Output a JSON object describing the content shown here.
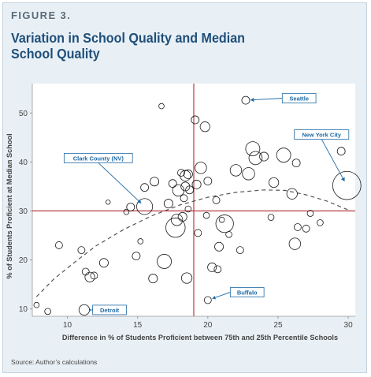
{
  "figure_label": "FIGURE 3.",
  "title": "Variation in School Quality and Median School Quality",
  "source": "Source: Author’s calculations",
  "colors": {
    "background": "#e9f0f5",
    "title": "#1f4f7a",
    "reference_lines": "#b3282d",
    "bubble_stroke": "#1a1a1a",
    "trend": "#555555",
    "annotation": "#1f6aa5"
  },
  "chart_data": {
    "type": "scatter",
    "subtype": "bubble",
    "xlabel": "Difference in % of Students Proficient between 75th and 25th Percentile Schools",
    "ylabel": "% of Students Proficient at Median School",
    "xlim": [
      7.5,
      30.5
    ],
    "ylim": [
      8.5,
      56
    ],
    "xticks": [
      10,
      15,
      20,
      25,
      30
    ],
    "yticks": [
      10,
      20,
      30,
      40,
      50
    ],
    "grid": false,
    "reference_lines": {
      "x": 19,
      "y": 30
    },
    "trend": {
      "style": "dashed",
      "x": [
        7.8,
        9,
        10.5,
        12,
        14,
        16,
        18,
        20,
        22,
        24,
        25.5,
        27,
        28.5,
        30
      ],
      "y": [
        12.5,
        16,
        19.5,
        22.8,
        26.2,
        29,
        31.2,
        32.8,
        33.8,
        34.3,
        34.2,
        33.3,
        32,
        30.2
      ]
    },
    "points": [
      {
        "x": 7.8,
        "y": 10.8,
        "size": 0.6
      },
      {
        "x": 8.6,
        "y": 9.5,
        "size": 0.7
      },
      {
        "x": 9.4,
        "y": 23.0,
        "size": 0.8
      },
      {
        "x": 11.0,
        "y": 22.0,
        "size": 0.8
      },
      {
        "x": 11.3,
        "y": 17.6,
        "size": 0.8
      },
      {
        "x": 11.6,
        "y": 16.5,
        "size": 1.1
      },
      {
        "x": 11.9,
        "y": 16.8,
        "size": 0.8
      },
      {
        "x": 11.2,
        "y": 9.8,
        "size": 1.2
      },
      {
        "x": 12.6,
        "y": 19.4,
        "size": 1.0
      },
      {
        "x": 12.9,
        "y": 31.8,
        "size": 0.5
      },
      {
        "x": 14.2,
        "y": 29.8,
        "size": 0.6
      },
      {
        "x": 14.5,
        "y": 30.8,
        "size": 0.9
      },
      {
        "x": 14.9,
        "y": 20.8,
        "size": 0.9
      },
      {
        "x": 15.2,
        "y": 23.8,
        "size": 0.6
      },
      {
        "x": 15.5,
        "y": 30.9,
        "size": 1.8
      },
      {
        "x": 15.5,
        "y": 34.8,
        "size": 0.9
      },
      {
        "x": 16.2,
        "y": 36.0,
        "size": 1.0
      },
      {
        "x": 16.1,
        "y": 16.2,
        "size": 1.0
      },
      {
        "x": 16.7,
        "y": 51.4,
        "size": 0.6
      },
      {
        "x": 16.9,
        "y": 19.7,
        "size": 1.6
      },
      {
        "x": 17.2,
        "y": 31.5,
        "size": 1.0
      },
      {
        "x": 17.5,
        "y": 35.6,
        "size": 0.9
      },
      {
        "x": 17.7,
        "y": 26.6,
        "size": 2.2
      },
      {
        "x": 17.8,
        "y": 28.2,
        "size": 1.3
      },
      {
        "x": 17.9,
        "y": 34.2,
        "size": 1.3
      },
      {
        "x": 18.1,
        "y": 37.8,
        "size": 0.8
      },
      {
        "x": 18.2,
        "y": 28.8,
        "size": 1.0
      },
      {
        "x": 18.3,
        "y": 32.6,
        "size": 0.8
      },
      {
        "x": 18.4,
        "y": 35.0,
        "size": 1.0
      },
      {
        "x": 18.4,
        "y": 37.2,
        "size": 1.2
      },
      {
        "x": 18.6,
        "y": 37.5,
        "size": 1.0
      },
      {
        "x": 18.7,
        "y": 34.3,
        "size": 0.9
      },
      {
        "x": 18.6,
        "y": 30.4,
        "size": 0.7
      },
      {
        "x": 18.5,
        "y": 16.3,
        "size": 1.2
      },
      {
        "x": 19.1,
        "y": 48.6,
        "size": 0.9
      },
      {
        "x": 19.2,
        "y": 35.4,
        "size": 1.0
      },
      {
        "x": 19.3,
        "y": 25.5,
        "size": 0.8
      },
      {
        "x": 19.5,
        "y": 38.8,
        "size": 1.3
      },
      {
        "x": 19.8,
        "y": 47.2,
        "size": 1.1
      },
      {
        "x": 19.9,
        "y": 29.1,
        "size": 0.7
      },
      {
        "x": 20.0,
        "y": 36.1,
        "size": 0.9
      },
      {
        "x": 20.0,
        "y": 11.8,
        "size": 0.8
      },
      {
        "x": 20.3,
        "y": 18.5,
        "size": 1.0
      },
      {
        "x": 20.6,
        "y": 32.2,
        "size": 0.8
      },
      {
        "x": 20.7,
        "y": 18.1,
        "size": 0.8
      },
      {
        "x": 20.8,
        "y": 22.7,
        "size": 1.0
      },
      {
        "x": 21.0,
        "y": 28.2,
        "size": 0.6
      },
      {
        "x": 21.2,
        "y": 27.4,
        "size": 2.0
      },
      {
        "x": 21.5,
        "y": 25.2,
        "size": 0.7
      },
      {
        "x": 22.0,
        "y": 38.3,
        "size": 1.3
      },
      {
        "x": 22.3,
        "y": 22.0,
        "size": 0.8
      },
      {
        "x": 22.7,
        "y": 52.6,
        "size": 0.9
      },
      {
        "x": 22.9,
        "y": 37.6,
        "size": 1.4
      },
      {
        "x": 23.2,
        "y": 42.7,
        "size": 1.6
      },
      {
        "x": 23.4,
        "y": 40.8,
        "size": 1.5
      },
      {
        "x": 24.0,
        "y": 41.1,
        "size": 1.0
      },
      {
        "x": 24.5,
        "y": 28.7,
        "size": 0.7
      },
      {
        "x": 24.7,
        "y": 35.8,
        "size": 1.1
      },
      {
        "x": 25.4,
        "y": 41.4,
        "size": 1.6
      },
      {
        "x": 26.0,
        "y": 33.5,
        "size": 1.2
      },
      {
        "x": 26.2,
        "y": 23.3,
        "size": 1.3
      },
      {
        "x": 26.3,
        "y": 39.8,
        "size": 0.9
      },
      {
        "x": 26.4,
        "y": 26.7,
        "size": 0.8
      },
      {
        "x": 27.0,
        "y": 26.4,
        "size": 0.8
      },
      {
        "x": 27.3,
        "y": 29.5,
        "size": 0.7
      },
      {
        "x": 28.0,
        "y": 27.6,
        "size": 0.7
      },
      {
        "x": 29.5,
        "y": 42.2,
        "size": 0.9
      },
      {
        "x": 29.9,
        "y": 35.2,
        "size": 3.2
      }
    ],
    "annotations": [
      {
        "label": "Seattle",
        "x": 22.7,
        "y": 52.6,
        "lx": 26.5,
        "ly": 53.0
      },
      {
        "label": "New York City",
        "x": 29.9,
        "y": 35.2,
        "lx": 28.1,
        "ly": 45.6
      },
      {
        "label": "Clark County (NV)",
        "x": 15.5,
        "y": 30.9,
        "lx": 12.2,
        "ly": 40.8
      },
      {
        "label": "Buffalo",
        "x": 20.0,
        "y": 11.8,
        "lx": 22.8,
        "ly": 13.4
      },
      {
        "label": "Detroit",
        "x": 11.2,
        "y": 9.8,
        "lx": 13.0,
        "ly": 9.8
      }
    ]
  }
}
